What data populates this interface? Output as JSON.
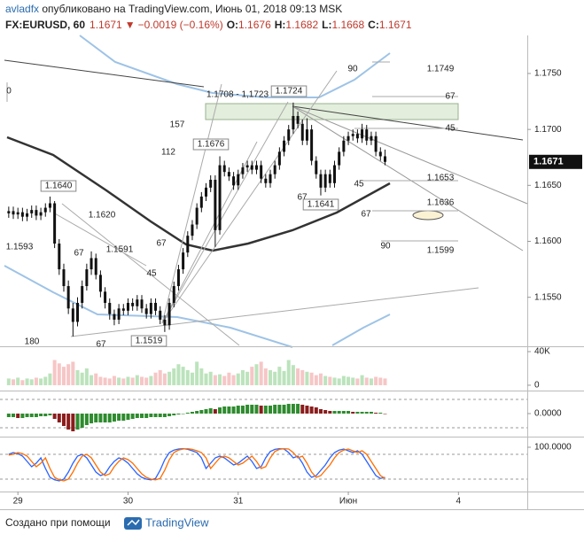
{
  "header": {
    "author": "avladfx",
    "published": " опубликовано на TradingView.com, Июнь 01, 2018 09:13 MSK",
    "symbol": "FX:EURUSD, 60",
    "last": "1.1671",
    "arrow": "▼",
    "change": "−0.0019 (−0.16%)",
    "ohlc": [
      {
        "key": "O:",
        "value": "1.1676"
      },
      {
        "key": "H:",
        "value": "1.1682"
      },
      {
        "key": "L:",
        "value": "1.1668"
      },
      {
        "key": "C:",
        "value": "1.1671"
      }
    ]
  },
  "footer": {
    "credit": "Создано при помощи",
    "brand": "TradingView"
  },
  "chart_data": [
    {
      "type": "candlestick",
      "color": "#111111",
      "grid": false,
      "x": [
        -2,
        -1,
        0,
        1,
        2,
        3,
        4,
        5,
        6,
        7,
        8,
        9,
        10,
        11,
        12,
        13,
        14,
        15,
        16,
        17,
        18,
        19,
        20,
        21,
        22,
        23,
        24,
        25,
        26,
        27,
        28,
        29,
        30,
        31,
        32,
        33,
        34,
        35,
        36,
        37,
        38,
        39,
        40,
        41,
        42,
        43,
        44,
        45,
        46,
        47,
        48,
        49,
        50,
        51,
        52,
        53,
        54,
        55,
        56,
        57,
        58,
        59,
        60,
        61,
        62,
        63,
        64,
        65,
        66,
        67,
        68,
        69,
        70,
        71,
        72,
        73,
        74,
        75,
        76,
        77,
        78,
        79,
        80
      ],
      "open": [
        1.1625,
        1.1627,
        1.1624,
        1.1626,
        1.1622,
        1.1625,
        1.1628,
        1.1623,
        1.1626,
        1.163,
        1.1634,
        1.1598,
        1.1575,
        1.156,
        1.154,
        1.1528,
        1.1545,
        1.156,
        1.1575,
        1.1585,
        1.157,
        1.1555,
        1.1545,
        1.1535,
        1.153,
        1.154,
        1.1538,
        1.1545,
        1.1542,
        1.1548,
        1.154,
        1.1535,
        1.1545,
        1.1538,
        1.153,
        1.1525,
        1.1545,
        1.156,
        1.1575,
        1.159,
        1.1605,
        1.1615,
        1.163,
        1.164,
        1.1648,
        1.1655,
        1.161,
        1.1668,
        1.1662,
        1.1658,
        1.165,
        1.166,
        1.1666,
        1.1668,
        1.1664,
        1.1668,
        1.1656,
        1.1652,
        1.166,
        1.1668,
        1.168,
        1.169,
        1.17,
        1.1712,
        1.1705,
        1.169,
        1.17,
        1.1672,
        1.166,
        1.1648,
        1.166,
        1.1652,
        1.1668,
        1.168,
        1.169,
        1.1694,
        1.1696,
        1.1692,
        1.17,
        1.169,
        1.1694,
        1.168,
        1.1676
      ],
      "high": [
        1.1631,
        1.1631,
        1.163,
        1.163,
        1.1629,
        1.1632,
        1.1632,
        1.163,
        1.1634,
        1.164,
        1.1636,
        1.1602,
        1.158,
        1.1565,
        1.1545,
        1.155,
        1.1565,
        1.158,
        1.1591,
        1.1589,
        1.1574,
        1.1559,
        1.1549,
        1.1539,
        1.1544,
        1.1544,
        1.1549,
        1.1549,
        1.1552,
        1.1552,
        1.1544,
        1.1549,
        1.1549,
        1.1542,
        1.1534,
        1.1549,
        1.1564,
        1.1579,
        1.1594,
        1.1609,
        1.1619,
        1.1634,
        1.1644,
        1.1652,
        1.1659,
        1.1659,
        1.1676,
        1.1672,
        1.1666,
        1.1662,
        1.1664,
        1.167,
        1.1672,
        1.1672,
        1.1672,
        1.1672,
        1.166,
        1.1664,
        1.1672,
        1.1684,
        1.1694,
        1.1704,
        1.1724,
        1.1716,
        1.1709,
        1.171,
        1.1704,
        1.1676,
        1.1664,
        1.1664,
        1.1664,
        1.1672,
        1.1684,
        1.1694,
        1.1698,
        1.17,
        1.17,
        1.1705,
        1.1704,
        1.1698,
        1.1698,
        1.1684,
        1.1682
      ],
      "low": [
        1.1621,
        1.162,
        1.162,
        1.1618,
        1.1618,
        1.1621,
        1.1619,
        1.1619,
        1.1622,
        1.1626,
        1.1594,
        1.157,
        1.1555,
        1.1535,
        1.1515,
        1.1524,
        1.154,
        1.1556,
        1.157,
        1.1566,
        1.155,
        1.154,
        1.153,
        1.1525,
        1.1526,
        1.1534,
        1.1534,
        1.1538,
        1.1538,
        1.1536,
        1.1531,
        1.1531,
        1.1534,
        1.1526,
        1.1519,
        1.1521,
        1.1541,
        1.1556,
        1.1571,
        1.1586,
        1.1601,
        1.1611,
        1.1626,
        1.1636,
        1.1644,
        1.1595,
        1.1606,
        1.1658,
        1.1654,
        1.1646,
        1.1646,
        1.1656,
        1.1662,
        1.166,
        1.166,
        1.1652,
        1.1648,
        1.1648,
        1.1656,
        1.1664,
        1.1676,
        1.1686,
        1.1696,
        1.1701,
        1.1686,
        1.1686,
        1.1668,
        1.1656,
        1.1641,
        1.1644,
        1.1648,
        1.1648,
        1.1664,
        1.1676,
        1.1686,
        1.169,
        1.1688,
        1.1688,
        1.1686,
        1.1686,
        1.1676,
        1.1672,
        1.1668
      ],
      "close": [
        1.1627,
        1.1624,
        1.1626,
        1.1622,
        1.1625,
        1.1628,
        1.1623,
        1.1626,
        1.163,
        1.1634,
        1.1598,
        1.1575,
        1.156,
        1.154,
        1.1528,
        1.1545,
        1.156,
        1.1575,
        1.1585,
        1.157,
        1.1555,
        1.1545,
        1.1535,
        1.153,
        1.154,
        1.1538,
        1.1545,
        1.1542,
        1.1548,
        1.154,
        1.1535,
        1.1545,
        1.1538,
        1.153,
        1.1525,
        1.1545,
        1.156,
        1.1575,
        1.159,
        1.1605,
        1.1615,
        1.163,
        1.164,
        1.1648,
        1.1655,
        1.161,
        1.1668,
        1.1662,
        1.1658,
        1.165,
        1.166,
        1.1666,
        1.1668,
        1.1664,
        1.1668,
        1.1656,
        1.1652,
        1.166,
        1.1668,
        1.168,
        1.169,
        1.17,
        1.1712,
        1.1705,
        1.169,
        1.17,
        1.1672,
        1.166,
        1.1648,
        1.166,
        1.1652,
        1.1668,
        1.168,
        1.169,
        1.1694,
        1.1696,
        1.1692,
        1.17,
        1.169,
        1.1694,
        1.168,
        1.1676,
        1.1671
      ],
      "xlim": [
        -3.9,
        111
      ],
      "xticks": [
        {
          "value": 0,
          "label": "29"
        },
        {
          "value": 24,
          "label": "30"
        },
        {
          "value": 48,
          "label": "31"
        },
        {
          "value": 72,
          "label": "Июн"
        },
        {
          "value": 96,
          "label": "4"
        }
      ],
      "ylim": [
        1.1507,
        1.1784
      ],
      "yticks": [
        {
          "value": 1.175,
          "label": "1.1750"
        },
        {
          "value": 1.17,
          "label": "1.1700"
        },
        {
          "value": 1.165,
          "label": "1.1650"
        },
        {
          "value": 1.16,
          "label": "1.1600"
        },
        {
          "value": 1.155,
          "label": "1.1550"
        }
      ],
      "last_price_label": "1.1671",
      "annotations": [
        "90",
        "1.1749",
        "0",
        "1.1708 - 1,1723",
        "1.1724",
        "67",
        "157",
        "45",
        "1.1676",
        "112",
        "1.1653",
        "1.1640",
        "45",
        "67",
        "1.1641",
        "1.1636",
        "1.1620",
        "67",
        "67",
        "1.1593",
        "1.1591",
        "67",
        "90",
        "1.1599",
        "45",
        "180",
        "67",
        "1.1519"
      ]
    },
    {
      "type": "bar",
      "colors": {
        "up": "#8fd08f",
        "down": "#f0a0a0"
      },
      "values": [
        8000,
        7000,
        9000,
        6000,
        8000,
        7000,
        9000,
        8000,
        10000,
        14000,
        30000,
        26000,
        22000,
        25000,
        28000,
        18000,
        15000,
        20000,
        12000,
        14000,
        10000,
        9000,
        8000,
        11000,
        9000,
        8000,
        10000,
        9000,
        12000,
        10000,
        9000,
        11000,
        15000,
        18000,
        14000,
        16000,
        20000,
        25000,
        22000,
        18000,
        15000,
        28000,
        20000,
        14000,
        16000,
        12000,
        13000,
        11000,
        15000,
        12000,
        14000,
        18000,
        16000,
        22000,
        25000,
        28000,
        20000,
        18000,
        16000,
        22000,
        17000,
        30000,
        24000,
        20000,
        18000,
        16000,
        15000,
        12000,
        14000,
        11000,
        10000,
        9000,
        8000,
        11000,
        10000,
        9000,
        8000,
        12000,
        9000,
        8000,
        10000,
        9000,
        8000
      ],
      "ylim": [
        -5300,
        45300
      ],
      "yticks": [
        {
          "value": 40000,
          "label": "40K"
        },
        0
      ]
    },
    {
      "type": "bar",
      "colors": {
        "up": "#2e8b2e",
        "down": "#8b1c1c"
      },
      "values": [
        -0.0004,
        -0.0004,
        -0.0005,
        -0.0005,
        -0.0004,
        -0.0004,
        -0.0004,
        -0.0003,
        -0.0003,
        -0.0002,
        -0.0006,
        -0.001,
        -0.0014,
        -0.0018,
        -0.002,
        -0.0018,
        -0.0016,
        -0.0013,
        -0.0011,
        -0.001,
        -0.001,
        -0.001,
        -0.001,
        -0.0009,
        -0.0008,
        -0.0008,
        -0.0007,
        -0.0006,
        -0.0005,
        -0.0005,
        -0.0005,
        -0.0004,
        -0.0004,
        -0.0004,
        -0.0004,
        -0.0003,
        -0.0002,
        -0.0001,
        0,
        0.0001,
        0.0002,
        0.0003,
        0.0004,
        0.0005,
        0.0006,
        0.0005,
        0.0007,
        0.0008,
        0.0008,
        0.0008,
        0.0009,
        0.0009,
        0.001,
        0.001,
        0.001,
        0.0009,
        0.0009,
        0.0009,
        0.001,
        0.001,
        0.001,
        0.0011,
        0.0011,
        0.0011,
        0.001,
        0.0009,
        0.0008,
        0.0007,
        0.0005,
        0.0004,
        0.0003,
        0.0003,
        0.0003,
        0.0003,
        0.0003,
        0.0002,
        0.0002,
        0.0002,
        0.0002,
        0.0002,
        0.0001,
        0.0001,
        0
      ],
      "ylim": [
        -0.0025,
        0.0025
      ],
      "yticks": [
        {
          "value": 0,
          "label": "0.0000"
        }
      ]
    },
    {
      "type": "line",
      "series": [
        {
          "color": "#2962ff",
          "values": [
            80,
            85,
            82,
            75,
            60,
            45,
            55,
            70,
            40,
            15,
            8,
            5,
            10,
            30,
            55,
            75,
            80,
            70,
            50,
            30,
            20,
            25,
            45,
            60,
            70,
            65,
            55,
            40,
            25,
            15,
            10,
            8,
            12,
            35,
            65,
            85,
            92,
            95,
            96,
            94,
            90,
            85,
            70,
            40,
            55,
            70,
            75,
            70,
            60,
            50,
            55,
            65,
            75,
            60,
            40,
            45,
            70,
            88,
            94,
            96,
            95,
            85,
            70,
            75,
            55,
            30,
            15,
            20,
            35,
            50,
            70,
            85,
            92,
            95,
            90,
            85,
            90,
            80,
            60,
            40,
            20,
            12,
            15
          ]
        },
        {
          "color": "#ff6d00",
          "values": [
            78,
            80,
            85,
            82,
            75,
            60,
            45,
            55,
            70,
            40,
            15,
            8,
            5,
            10,
            30,
            55,
            75,
            80,
            70,
            50,
            30,
            20,
            25,
            45,
            60,
            70,
            65,
            55,
            40,
            25,
            15,
            10,
            8,
            12,
            35,
            65,
            85,
            92,
            95,
            96,
            94,
            90,
            85,
            70,
            40,
            55,
            70,
            75,
            70,
            60,
            50,
            55,
            65,
            75,
            60,
            40,
            45,
            70,
            88,
            94,
            96,
            95,
            85,
            70,
            75,
            55,
            30,
            15,
            20,
            35,
            50,
            70,
            85,
            92,
            95,
            90,
            85,
            90,
            80,
            60,
            40,
            20,
            12
          ]
        }
      ],
      "ylim": [
        -25,
        127.5
      ],
      "yticks": [
        {
          "value": 100,
          "label": "100.0000"
        }
      ]
    }
  ]
}
